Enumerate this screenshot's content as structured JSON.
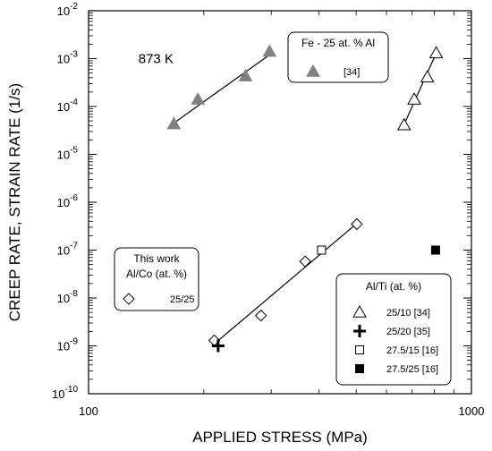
{
  "chart_data": {
    "type": "scatter",
    "xlabel": "APPLIED STRESS (MPa)",
    "ylabel": "CREEP RATE, STRAIN RATE (1/s)",
    "x_scale": "log",
    "y_scale": "log",
    "xlim": [
      100,
      1000
    ],
    "ylim": [
      1e-10,
      0.01
    ],
    "x_ticks": [
      100,
      1000
    ],
    "x_tick_labels": [
      "100",
      "1000"
    ],
    "y_tick_base": "10",
    "y_tick_exponents": [
      "-10",
      "-9",
      "-8",
      "-7",
      "-6",
      "-5",
      "-4",
      "-3",
      "-2"
    ],
    "grid": false,
    "annotations": [
      {
        "text": "873 K",
        "x": 150,
        "y": 0.001
      }
    ],
    "series": [
      {
        "marker": "triangle-filled",
        "color": "#808080",
        "x": [
          167,
          193,
          257,
          297
        ],
        "y": [
          4.3e-05,
          0.00014,
          0.00043,
          0.0014
        ],
        "fit_line": [
          [
            167,
            4.5e-05
          ],
          [
            297,
            0.0012
          ]
        ]
      },
      {
        "marker": "triangle-open",
        "color": "#000000",
        "x": [
          667,
          709,
          767,
          809
        ],
        "y": [
          4.1e-05,
          0.00014,
          0.00041,
          0.0013
        ],
        "fit_line": [
          [
            667,
            4.2e-05
          ],
          [
            809,
            0.0013
          ]
        ]
      },
      {
        "marker": "diamond-open",
        "color": "#000000",
        "x": [
          213,
          282,
          368,
          502
        ],
        "y": [
          1.3e-09,
          4.3e-09,
          5.8e-08,
          3.5e-07
        ],
        "fit_line": [
          [
            213,
            1.1e-09
          ],
          [
            502,
            3.6e-07
          ]
        ]
      },
      {
        "marker": "plus",
        "color": "#000000",
        "x": [
          218
        ],
        "y": [
          1e-09
        ]
      },
      {
        "marker": "square-open",
        "color": "#000000",
        "x": [
          406
        ],
        "y": [
          1e-07
        ]
      },
      {
        "marker": "square-filled",
        "color": "#000000",
        "x": [
          806
        ],
        "y": [
          1e-07
        ]
      }
    ],
    "legends": [
      {
        "title_lines": [
          "Fe - 25 at. % Al"
        ],
        "entries": [
          {
            "marker": "triangle-filled",
            "color": "#808080",
            "label": "[34]"
          }
        ]
      },
      {
        "title_lines": [
          "This work",
          "Al/Co (at. %)"
        ],
        "entries": [
          {
            "marker": "diamond-open",
            "color": "#000000",
            "label": "25/25"
          }
        ]
      },
      {
        "title_lines": [
          "Al/Ti (at. %)"
        ],
        "entries": [
          {
            "marker": "triangle-open",
            "color": "#000000",
            "label": "25/10 [34]"
          },
          {
            "marker": "plus",
            "color": "#000000",
            "label": "25/20 [35]"
          },
          {
            "marker": "square-open",
            "color": "#000000",
            "label": "27.5/15 [16]"
          },
          {
            "marker": "square-filled",
            "color": "#000000",
            "label": "27.5/25 [16]"
          }
        ]
      }
    ]
  }
}
